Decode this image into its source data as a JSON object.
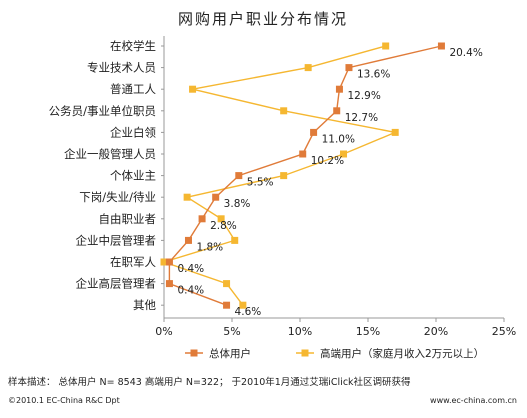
{
  "chart_data": {
    "type": "line",
    "title": "网购用户职业分布情况",
    "categories": [
      "在校学生",
      "专业技术人员",
      "普通工人",
      "公务员/事业单位职员",
      "企业白领",
      "企业一般管理人员",
      "个体业主",
      "下岗/失业/待业",
      "自由职业者",
      "企业中层管理者",
      "在职军人",
      "企业高层管理者",
      "其他"
    ],
    "series": [
      {
        "name": "总体用户",
        "color": "#e07b39",
        "values": [
          20.4,
          13.6,
          12.9,
          12.7,
          11.0,
          10.2,
          5.5,
          3.8,
          2.8,
          1.8,
          0.4,
          0.4,
          4.6
        ],
        "labels": [
          "20.4%",
          "13.6%",
          "12.9%",
          "12.7%",
          "11.0%",
          "10.2%",
          "5.5%",
          "3.8%",
          "2.8%",
          "1.8%",
          "0.4%",
          "0.4%",
          "4.6%"
        ]
      },
      {
        "name": "高端用户（家庭月收入2万元以上）",
        "color": "#f5b731",
        "values": [
          16.3,
          10.6,
          2.1,
          8.8,
          17.0,
          13.2,
          8.8,
          1.7,
          4.2,
          5.2,
          0.0,
          4.6,
          5.8
        ]
      }
    ],
    "x_ticks": [
      "0%",
      "5%",
      "10%",
      "15%",
      "20%",
      "25%"
    ],
    "xlim": [
      0,
      25
    ],
    "grid": false,
    "legend": "bottom"
  },
  "footnote": "样本描述： 总体用户 N= 8543 高端用户 N=322； 于2010年1月通过艾瑞iClick社区调研获得",
  "copyright": "©2010.1 EC-China R&C Dpt",
  "website": "www.ec-china.com.cn"
}
